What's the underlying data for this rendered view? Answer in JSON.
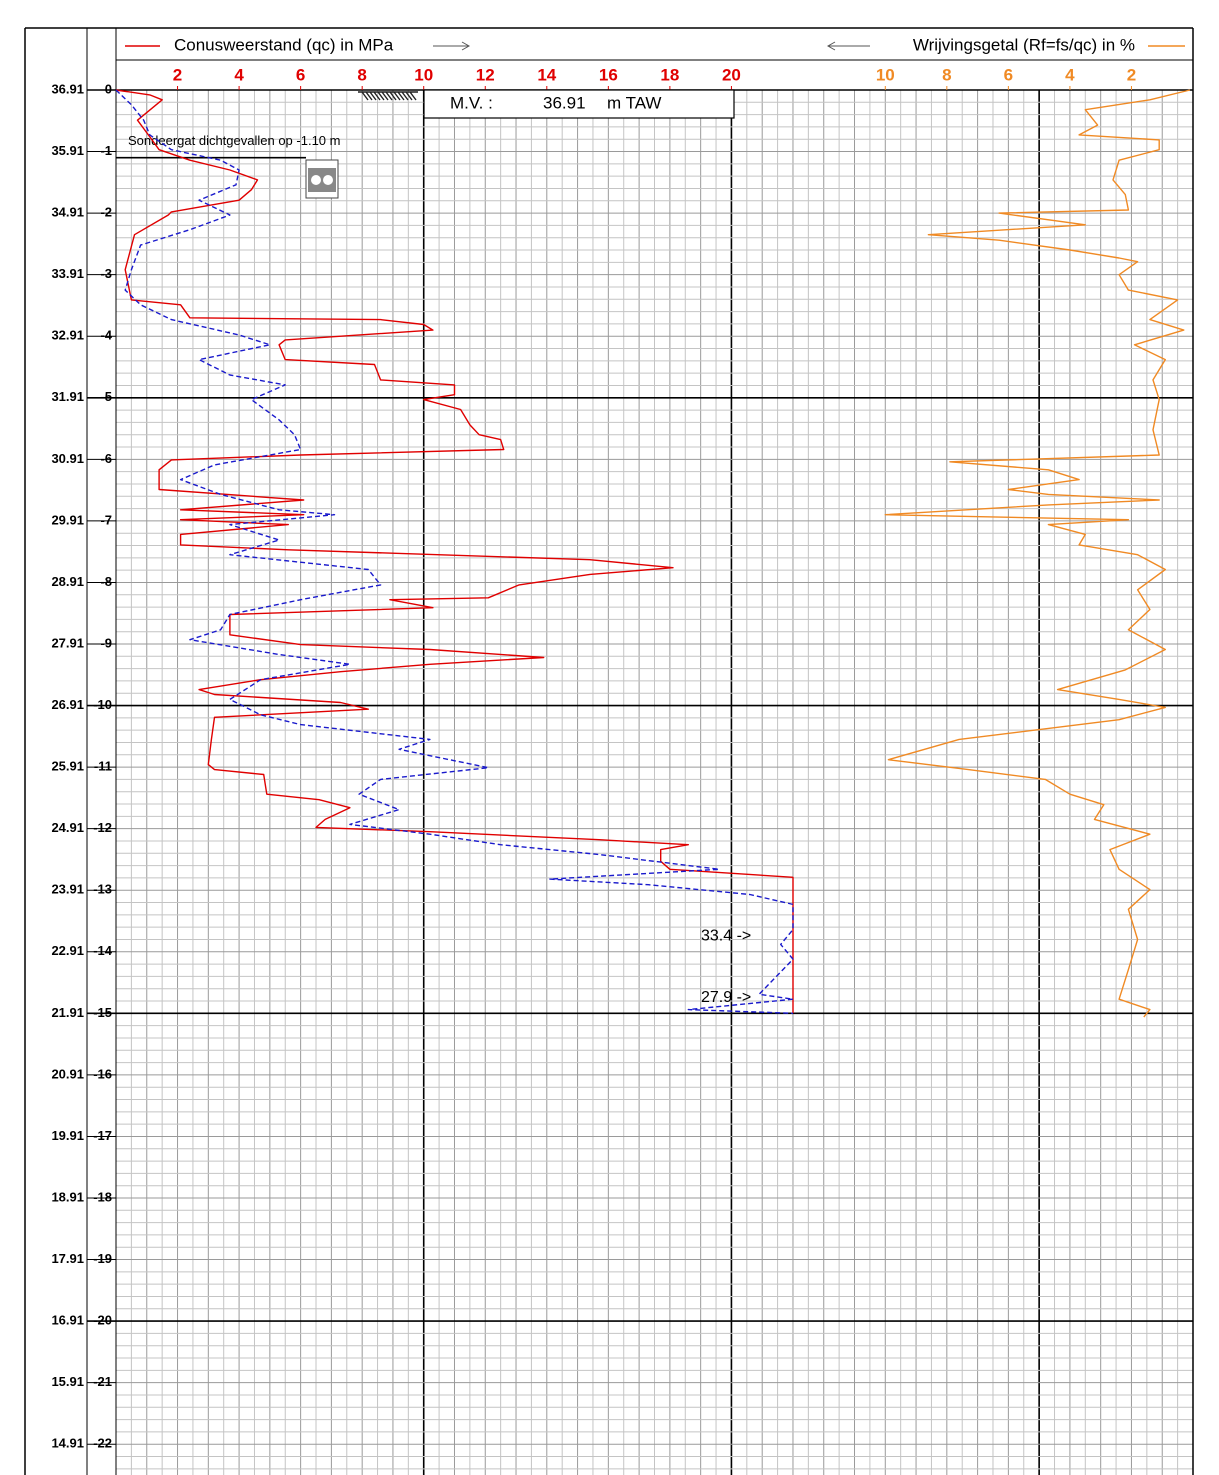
{
  "chart_data": {
    "type": "line",
    "xlim": [
      0,
      35
    ],
    "xticks": [
      2,
      4,
      6,
      8,
      10,
      12,
      14,
      16,
      18,
      20
    ],
    "x2lim": [
      35,
      0
    ],
    "x2ticks": [
      10,
      8,
      6,
      4,
      2
    ],
    "ylim": [
      0,
      -22.5
    ],
    "yticks": [
      0,
      -1,
      -2,
      -3,
      -4,
      -5,
      -6,
      -7,
      -8,
      -9,
      -10,
      -11,
      -12,
      -13,
      -14,
      -15,
      -16,
      -17,
      -18,
      -19,
      -20,
      -21,
      -22
    ],
    "taw_ticks": [
      36.91,
      35.91,
      34.91,
      33.91,
      32.91,
      31.91,
      30.91,
      29.91,
      28.91,
      27.91,
      26.91,
      25.91,
      24.91,
      23.91,
      22.91,
      21.91,
      20.91,
      19.91,
      18.91,
      17.91,
      16.91,
      15.91,
      14.91
    ],
    "grid": true,
    "series": [
      {
        "name": "Conusweerstand (qc) in MPa",
        "color": "#e00000",
        "depth": [
          0,
          -0.08,
          -0.16,
          -0.49,
          -0.76,
          -0.97,
          -1.14,
          -1.3,
          -1.46,
          -1.62,
          -1.79,
          -1.98,
          -2.03,
          -2.35,
          -2.92,
          -3.41,
          -3.49,
          -3.7,
          -3.73,
          -3.81,
          -3.9,
          -4.06,
          -4.14,
          -4.38,
          -4.46,
          -4.71,
          -4.79,
          -4.95,
          -5.03,
          -5.19,
          -5.44,
          -5.6,
          -5.68,
          -5.84,
          -5.93,
          -6.01,
          -6.17,
          -6.49,
          -6.66,
          -6.82,
          -6.9,
          -6.98,
          -7.06,
          -7.22,
          -7.39,
          -7.47,
          -7.63,
          -7.76,
          -7.87,
          -8.04,
          -8.25,
          -8.28,
          -8.41,
          -8.52,
          -8.85,
          -9.01,
          -9.09,
          -9.22,
          -9.33,
          -9.45,
          -9.58,
          -9.74,
          -9.82,
          -9.95,
          -10.06,
          -10.19,
          -10.55,
          -10.96,
          -11.04,
          -11.12,
          -11.44,
          -11.53,
          -11.66,
          -11.85,
          -11.98,
          -12.05,
          -12.18,
          -12.26,
          -12.34,
          -12.53,
          -12.66,
          -12.79,
          -15
        ],
        "values": [
          0,
          1.1,
          1.5,
          0.7,
          1.1,
          1.4,
          2.4,
          3.7,
          4.6,
          4.4,
          4.0,
          1.8,
          1.7,
          0.6,
          0.3,
          0.5,
          2.1,
          2.4,
          8.6,
          10,
          10.3,
          5.5,
          5.3,
          5.5,
          8.4,
          8.6,
          11.0,
          11.0,
          10,
          11.2,
          11.5,
          11.8,
          12.5,
          12.6,
          6.0,
          1.8,
          1.4,
          1.4,
          6.1,
          2.1,
          6.1,
          2.1,
          5.6,
          2.1,
          2.1,
          5.6,
          15.4,
          18.1,
          15.4,
          13.1,
          12.1,
          8.9,
          10.3,
          3.7,
          3.7,
          6.0,
          10.2,
          13.9,
          10.2,
          7.3,
          4.7,
          2.7,
          3.2,
          7.3,
          8.2,
          3.2,
          3.1,
          3.0,
          3.2,
          4.8,
          4.9,
          6.6,
          7.6,
          6.8,
          6.5,
          10.2,
          15.7,
          18.6,
          17.7,
          17.7,
          18.0,
          22.0,
          22.0
        ]
      },
      {
        "color": "#1a1acc",
        "dashed": true,
        "depth": [
          0,
          -0.24,
          -0.49,
          -0.73,
          -0.97,
          -1.14,
          -1.3,
          -1.54,
          -1.79,
          -2.03,
          -2.27,
          -2.52,
          -2.92,
          -3.25,
          -3.49,
          -3.73,
          -3.98,
          -4.14,
          -4.38,
          -4.63,
          -4.79,
          -5.03,
          -5.36,
          -5.6,
          -5.84,
          -6.09,
          -6.33,
          -6.57,
          -6.82,
          -6.9,
          -7.06,
          -7.31,
          -7.55,
          -7.79,
          -8.04,
          -8.28,
          -8.52,
          -8.77,
          -8.93,
          -9.17,
          -9.33,
          -9.58,
          -9.9,
          -10.15,
          -10.31,
          -10.55,
          -10.71,
          -11.01,
          -11.2,
          -11.44,
          -11.69,
          -11.93,
          -12.09,
          -12.26,
          -12.42,
          -12.66,
          -12.82,
          -12.91,
          -13.07,
          -13.23,
          -13.64,
          -13.88,
          -14.12,
          -14.69,
          -14.77,
          -14.94,
          -15
        ],
        "values": [
          0,
          0.5,
          0.9,
          1.1,
          1.8,
          3.4,
          4.0,
          3.9,
          2.7,
          3.7,
          2.4,
          0.8,
          0.5,
          0.3,
          0.8,
          1.8,
          4.0,
          5.0,
          2.7,
          3.7,
          5.5,
          4.4,
          5.3,
          5.8,
          6.0,
          3.2,
          2.1,
          3.4,
          5.3,
          7.1,
          3.7,
          5.3,
          3.7,
          8.2,
          8.6,
          6.0,
          3.7,
          3.4,
          2.4,
          5.3,
          7.6,
          4.7,
          3.7,
          4.7,
          6.0,
          10.2,
          9.2,
          12.1,
          8.6,
          7.9,
          9.2,
          7.6,
          10.2,
          12.5,
          15.7,
          19.6,
          14.1,
          17.3,
          20.6,
          22.0,
          22.0,
          21.6,
          22.0,
          20.9,
          22.0,
          18.6,
          22.0
        ]
      },
      {
        "name": "Wrijvingsgetal (Rf=fs/qc) in %",
        "color": "#f08a24",
        "axis": "x2",
        "depth": [
          0,
          -0.16,
          -0.32,
          -0.57,
          -0.73,
          -0.81,
          -0.97,
          -1.14,
          -1.46,
          -1.7,
          -1.95,
          -2.0,
          -2.19,
          -2.35,
          -2.44,
          -2.6,
          -2.73,
          -2.79,
          -3.0,
          -3.25,
          -3.41,
          -3.73,
          -3.9,
          -4.14,
          -4.38,
          -4.71,
          -5.03,
          -5.52,
          -5.93,
          -6.04,
          -6.17,
          -6.33,
          -6.49,
          -6.57,
          -6.66,
          -6.74,
          -6.9,
          -6.98,
          -7.06,
          -7.22,
          -7.39,
          -7.55,
          -7.79,
          -8.12,
          -8.44,
          -8.77,
          -9.09,
          -9.42,
          -9.74,
          -9.9,
          -10.03,
          -10.23,
          -10.55,
          -10.88,
          -11.04,
          -11.2,
          -11.44,
          -11.61,
          -11.85,
          -12.09,
          -12.34,
          -12.66,
          -12.99,
          -13.31,
          -13.8,
          -14.29,
          -14.77,
          -14.94,
          -15.06
        ],
        "values": [
          0.1,
          1.4,
          3.5,
          3.1,
          3.7,
          1.1,
          1.1,
          2.4,
          2.6,
          2.2,
          2.1,
          6.3,
          3.5,
          8.6,
          6.3,
          4.0,
          2.4,
          1.8,
          2.4,
          2.1,
          0.5,
          1.4,
          0.3,
          1.9,
          0.9,
          1.3,
          1.1,
          1.3,
          1.1,
          7.9,
          4.7,
          3.7,
          6.0,
          4.7,
          1.1,
          4.7,
          10.0,
          2.1,
          4.7,
          3.5,
          3.7,
          1.8,
          0.9,
          1.8,
          1.4,
          2.1,
          0.9,
          2.2,
          4.4,
          2.4,
          0.9,
          2.4,
          7.6,
          9.9,
          7.3,
          4.8,
          4.0,
          2.9,
          3.2,
          1.4,
          2.7,
          2.4,
          1.4,
          2.1,
          1.8,
          2.1,
          2.4,
          1.4,
          1.6
        ]
      }
    ],
    "ground_level": {
      "label": "M.V. :",
      "value": 36.91,
      "unit": "m TAW"
    },
    "annotations": [
      {
        "text": "Sondeergat dichtgevallen op -1.10 m",
        "depth": -1.1
      },
      {
        "text": "33.4 ->",
        "depth": -13.75
      },
      {
        "text": "27.9 ->",
        "depth": -14.75
      }
    ]
  }
}
